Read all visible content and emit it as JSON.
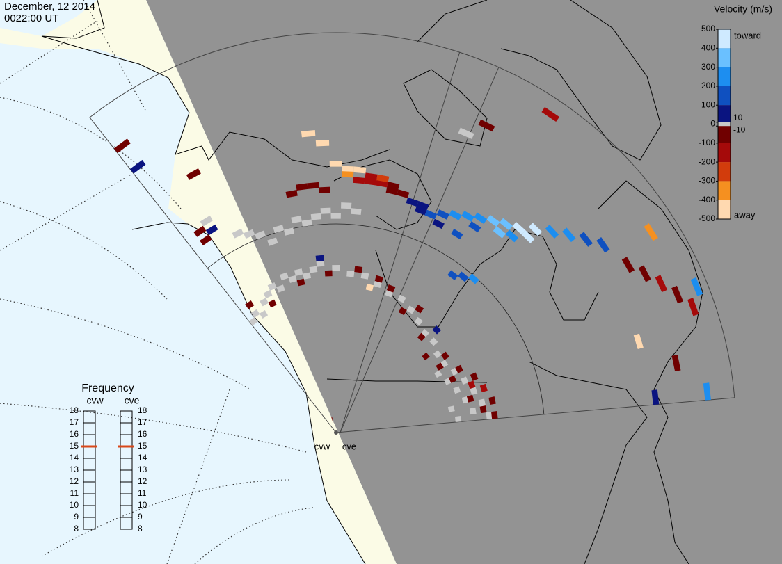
{
  "header": {
    "date": "December, 12 2014",
    "time": "0022:00 UT"
  },
  "colorbar": {
    "title": "Velocity (m/s)",
    "lim": [
      -500,
      500
    ],
    "ticks": [
      500,
      400,
      300,
      200,
      100,
      10,
      0,
      -10,
      -100,
      -200,
      -300,
      -400,
      -500
    ],
    "top_label": "toward",
    "bottom_label": "away",
    "band_colors": [
      "#cfeaff",
      "#6ac0ff",
      "#1d8ef0",
      "#0f50c0",
      "#0a1480",
      "#700000",
      "#a50a0a",
      "#d23c0c",
      "#f59020",
      "#ffd9b0"
    ],
    "ground_color": "#c8c8c8"
  },
  "frequency": {
    "title": "Frequency",
    "ticks": [
      18,
      17,
      16,
      15,
      14,
      13,
      12,
      11,
      10,
      9,
      8
    ],
    "marker_color": "#d9481a",
    "radars": [
      {
        "name": "cvw",
        "value": 15
      },
      {
        "name": "cve",
        "value": 15
      }
    ]
  },
  "map_labels": [
    "cvw",
    "cve"
  ],
  "cells": [
    [
      21,
      46,
      60
    ],
    [
      22,
      46,
      80
    ],
    [
      22,
      45,
      90
    ],
    [
      23,
      45,
      150
    ],
    [
      24,
      46,
      180
    ],
    [
      25,
      47,
      220
    ],
    [
      26,
      48,
      250
    ],
    [
      27,
      49,
      300
    ],
    [
      28,
      50,
      320
    ],
    [
      29,
      51,
      380
    ],
    [
      30,
      52,
      420
    ],
    [
      31,
      54,
      450
    ],
    [
      32,
      56,
      300
    ],
    [
      33,
      58,
      250
    ],
    [
      34,
      60,
      200
    ],
    [
      35,
      62,
      180
    ],
    [
      27,
      47,
      200
    ],
    [
      29,
      49,
      350
    ],
    [
      31,
      52,
      480
    ],
    [
      30,
      50,
      260
    ],
    [
      28,
      37,
      200
    ],
    [
      29,
      38,
      180
    ],
    [
      30,
      39,
      220
    ],
    [
      26,
      44,
      120
    ],
    [
      24,
      44,
      70
    ],
    [
      16,
      48,
      -150
    ],
    [
      17,
      48,
      -120
    ],
    [
      18,
      48,
      -100
    ],
    [
      19,
      47,
      -80
    ],
    [
      20,
      47,
      -60
    ],
    [
      18,
      49,
      -200
    ],
    [
      17,
      49,
      -180
    ],
    [
      19,
      48,
      -90
    ],
    [
      15,
      50,
      -480
    ],
    [
      15,
      49,
      -350
    ],
    [
      14,
      51,
      -500
    ],
    [
      16,
      50,
      -420
    ],
    [
      11,
      47,
      -60
    ],
    [
      12,
      47,
      -80
    ],
    [
      10,
      46,
      -70
    ],
    [
      13,
      46,
      -90
    ],
    [
      6,
      40,
      0
    ],
    [
      8,
      40,
      0
    ],
    [
      10,
      41,
      0
    ],
    [
      12,
      41,
      0
    ],
    [
      14,
      41,
      0
    ],
    [
      16,
      42,
      0
    ],
    [
      7,
      38,
      0
    ],
    [
      9,
      39,
      0
    ],
    [
      11,
      40,
      0
    ],
    [
      13,
      42,
      0
    ],
    [
      15,
      43,
      0
    ],
    [
      5,
      41,
      0
    ],
    [
      4,
      42,
      0
    ],
    [
      0,
      26,
      0
    ],
    [
      1,
      27,
      0
    ],
    [
      2,
      26,
      0
    ],
    [
      3,
      28,
      0
    ],
    [
      4,
      29,
      0
    ],
    [
      5,
      30,
      0
    ],
    [
      6,
      29,
      0
    ],
    [
      7,
      31,
      0
    ],
    [
      8,
      30,
      0
    ],
    [
      9,
      31,
      0
    ],
    [
      10,
      30,
      0
    ],
    [
      11,
      31,
      0
    ],
    [
      12,
      32,
      0
    ],
    [
      14,
      31,
      0
    ],
    [
      16,
      30,
      0
    ],
    [
      18,
      30,
      0
    ],
    [
      20,
      29,
      0
    ],
    [
      22,
      28,
      0
    ],
    [
      24,
      28,
      0
    ],
    [
      26,
      27,
      0
    ],
    [
      28,
      26,
      0
    ],
    [
      30,
      25,
      0
    ],
    [
      32,
      25,
      0
    ],
    [
      34,
      24,
      0
    ],
    [
      36,
      24,
      0
    ],
    [
      38,
      25,
      0
    ],
    [
      40,
      26,
      0
    ],
    [
      42,
      27,
      0
    ],
    [
      44,
      28,
      0
    ],
    [
      46,
      29,
      0
    ],
    [
      37,
      22,
      0
    ],
    [
      39,
      23,
      0
    ],
    [
      41,
      24,
      0
    ],
    [
      43,
      25,
      0
    ],
    [
      45,
      26,
      0
    ],
    [
      46,
      23,
      0
    ],
    [
      44,
      22,
      0
    ],
    [
      1,
      29,
      -70
    ],
    [
      4,
      27,
      -80
    ],
    [
      9,
      29,
      -60
    ],
    [
      13,
      30,
      -90
    ],
    [
      17,
      31,
      -70
    ],
    [
      20,
      30,
      -80
    ],
    [
      22,
      29,
      -90
    ],
    [
      25,
      26,
      -60
    ],
    [
      30,
      24,
      -80
    ],
    [
      33,
      22,
      -60
    ],
    [
      36,
      23,
      -70
    ],
    [
      38,
      26,
      -90
    ],
    [
      40,
      28,
      -80
    ],
    [
      42,
      29,
      -100
    ],
    [
      44,
      30,
      -70
    ],
    [
      45,
      28,
      -90
    ],
    [
      43,
      26,
      -60
    ],
    [
      41,
      27,
      -110
    ],
    [
      39,
      24,
      -70
    ],
    [
      46,
      30,
      -80
    ],
    [
      35,
      25,
      -75
    ],
    [
      27,
      28,
      -85
    ],
    [
      31,
      27,
      60
    ],
    [
      19,
      28,
      -480
    ],
    [
      12,
      33,
      60
    ],
    [
      38,
      66,
      -80
    ],
    [
      39,
      68,
      -100
    ],
    [
      40,
      70,
      -90
    ],
    [
      41,
      72,
      -120
    ],
    [
      37,
      64,
      -60
    ],
    [
      40,
      74,
      300
    ],
    [
      46,
      71,
      250
    ],
    [
      46,
      61,
      40
    ],
    [
      42,
      60,
      -450
    ],
    [
      36,
      71,
      -300
    ],
    [
      44,
      66,
      -90
    ],
    [
      0,
      68,
      -80
    ],
    [
      0,
      63,
      60
    ],
    [
      3,
      56,
      -90
    ],
    [
      2,
      45,
      60
    ],
    [
      1,
      44,
      -80
    ],
    [
      2,
      47,
      0
    ],
    [
      1,
      46,
      -70
    ],
    [
      24,
      65,
      -90
    ],
    [
      27,
      73,
      -100
    ],
    [
      13,
      55,
      -480
    ],
    [
      12,
      57,
      -470
    ],
    [
      8,
      2,
      -80
    ],
    [
      23,
      62,
      0
    ]
  ]
}
